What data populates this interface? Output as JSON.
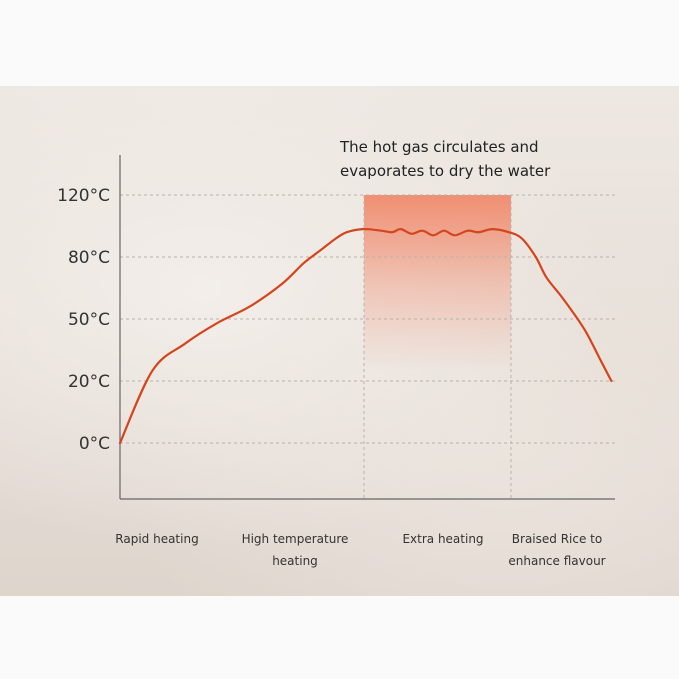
{
  "chart_data": {
    "type": "line",
    "title": "",
    "xlabel": "",
    "ylabel": "",
    "y_tick_labels": [
      "120°C",
      "80°C",
      "50°C",
      "20°C",
      "0°C"
    ],
    "y_ticks": [
      120,
      80,
      50,
      20,
      0
    ],
    "grid": true,
    "phases": [
      {
        "label_lines": [
          "Rapid heating"
        ]
      },
      {
        "label_lines": [
          "High temperature",
          "heating"
        ]
      },
      {
        "label_lines": [
          "Extra heating"
        ]
      },
      {
        "label_lines": [
          "Braised Rice to",
          "enhance flavour"
        ]
      }
    ],
    "highlight": {
      "phase": "Extra heating",
      "color": "#f08a6c",
      "annotation_lines": [
        "The hot gas circulates and",
        "evaporates to dry the water"
      ]
    },
    "series": [
      {
        "color": "#d4451c",
        "points": [
          [
            0.0,
            0
          ],
          [
            0.3,
            25
          ],
          [
            0.6,
            38
          ],
          [
            0.9,
            48
          ],
          [
            1.2,
            56
          ],
          [
            1.5,
            67
          ],
          [
            1.7,
            77
          ],
          [
            1.85,
            84
          ],
          [
            2.0,
            92
          ],
          [
            2.1,
            96
          ],
          [
            2.25,
            98
          ],
          [
            2.42,
            97
          ],
          [
            2.52,
            96
          ],
          [
            2.6,
            98
          ],
          [
            2.7,
            95
          ],
          [
            2.8,
            97
          ],
          [
            2.9,
            94
          ],
          [
            3.0,
            97
          ],
          [
            3.1,
            94
          ],
          [
            3.22,
            97
          ],
          [
            3.32,
            96
          ],
          [
            3.45,
            98
          ],
          [
            3.6,
            96
          ],
          [
            3.72,
            92
          ],
          [
            3.85,
            80
          ],
          [
            3.95,
            70
          ],
          [
            4.1,
            60
          ],
          [
            4.3,
            45
          ],
          [
            4.45,
            30
          ],
          [
            4.55,
            20
          ]
        ]
      }
    ]
  }
}
